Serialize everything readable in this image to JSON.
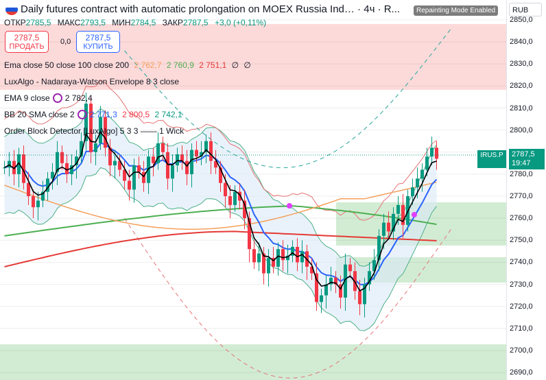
{
  "header": {
    "title": "Daily futures contract with automatic prolongation on MOEX Russia Ind… · 4ч · R...",
    "repaint_badge": "Repainting Mode Enabled",
    "currency": "RUB"
  },
  "ohlc": {
    "open_label": "ОТКР",
    "open": "2785,5",
    "high_label": "МАКС",
    "high": "2793,5",
    "low_label": "МИН",
    "low": "2784,5",
    "close_label": "ЗАКР",
    "close": "2787,5",
    "change": "+3,0 (+0,11%)"
  },
  "trade": {
    "sell_price": "2787,5",
    "sell_label": "ПРОДАТЬ",
    "spread": "0,0",
    "buy_price": "2787,5",
    "buy_label": "КУПИТЬ"
  },
  "indicators": [
    {
      "name": "Ema close 50 close 100 close 200",
      "v1": "2 762,7",
      "v2": "2 760,9",
      "v3": "2 751,1",
      "v4": "∅",
      "v5": "∅"
    },
    {
      "name": "LuxAlgo - Nadaraya-Watson Envelope 8 3 close"
    },
    {
      "name": "EMA 9 close",
      "v1": "2 782,4"
    },
    {
      "name": "BB 20 SMA close 2",
      "v1": "2 771,3",
      "v2": "2 800,5",
      "v3": "2 742,1"
    },
    {
      "name": "Order Block Detector [LuxAlgo] 5 3 3 —— 1 Wick"
    }
  ],
  "price_axis": {
    "ticks": [
      "2850,0",
      "2840,0",
      "2830,0",
      "2820,0",
      "2810,0",
      "2800,0",
      "2790,0",
      "2780,0",
      "2770,0",
      "2760,0",
      "2750,0",
      "2740,0",
      "2730,0",
      "2720,0",
      "2710,0",
      "2700,0",
      "2690,0"
    ],
    "last_price": "2787,5",
    "countdown": "19:47",
    "symbol_tag": "IRUS.P"
  },
  "colors": {
    "up": "#089981",
    "down": "#f23645",
    "ema9": "#000000",
    "ema50": "#f5a05c",
    "ema100": "#4caf50",
    "ema200": "#e53935",
    "bb_basis": "#2962ff",
    "accent": "#9c27b0"
  }
}
